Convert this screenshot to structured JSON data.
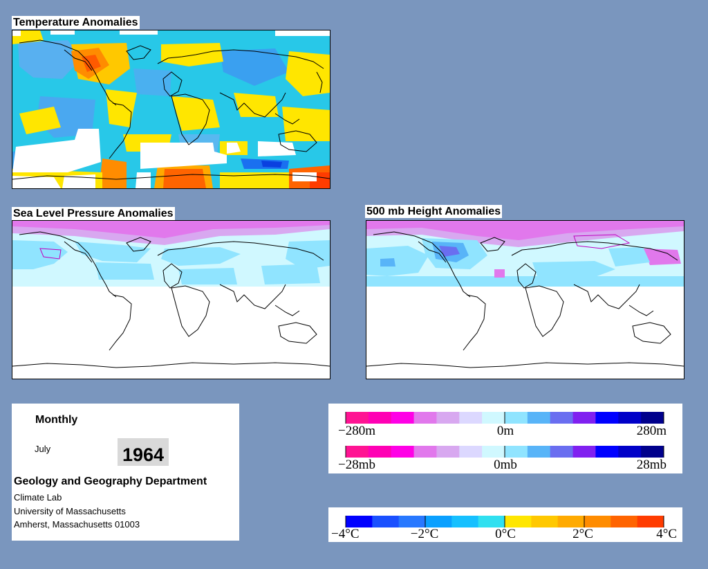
{
  "maps": {
    "temperature": {
      "title": "Temperature Anomalies"
    },
    "pressure": {
      "title": "Sea Level Pressure Anomalies"
    },
    "height": {
      "title": "500 mb Height Anomalies"
    }
  },
  "info": {
    "period": "Monthly",
    "month": "July",
    "year": "1964",
    "department": "Geology and Geography Department",
    "lab": "Climate Lab",
    "university": "University of Massachusetts",
    "address": "Amherst, Massachusetts 01003"
  },
  "legends": {
    "height": {
      "labels": [
        "−280m",
        "0m",
        "280m"
      ],
      "colors": [
        "#ff1493",
        "#ff00b4",
        "#ff00e6",
        "#e178ec",
        "#d8a8f0",
        "#dcd8ff",
        "#d0f8ff",
        "#90e4ff",
        "#58b4f8",
        "#6a6ef0",
        "#8020f0",
        "#0000ff",
        "#0000c8",
        "#00008c"
      ]
    },
    "pressure": {
      "labels": [
        "−28mb",
        "0mb",
        "28mb"
      ],
      "colors": [
        "#ff1493",
        "#ff00b4",
        "#ff00e6",
        "#e178ec",
        "#d8a8f0",
        "#dcd8ff",
        "#d0f8ff",
        "#90e4ff",
        "#58b4f8",
        "#6a6ef0",
        "#8020f0",
        "#0000ff",
        "#0000c8",
        "#00008c"
      ]
    },
    "temperature": {
      "labels": [
        "−4°C",
        "−2°C",
        "0°C",
        "2°C",
        "4°C"
      ],
      "colors": [
        "#0000ff",
        "#1a50ff",
        "#2878ff",
        "#0aa0ff",
        "#16c0ff",
        "#30e0f0",
        "#ffe600",
        "#ffc800",
        "#ffaa00",
        "#ff8c00",
        "#ff6400",
        "#ff3c00"
      ]
    }
  }
}
